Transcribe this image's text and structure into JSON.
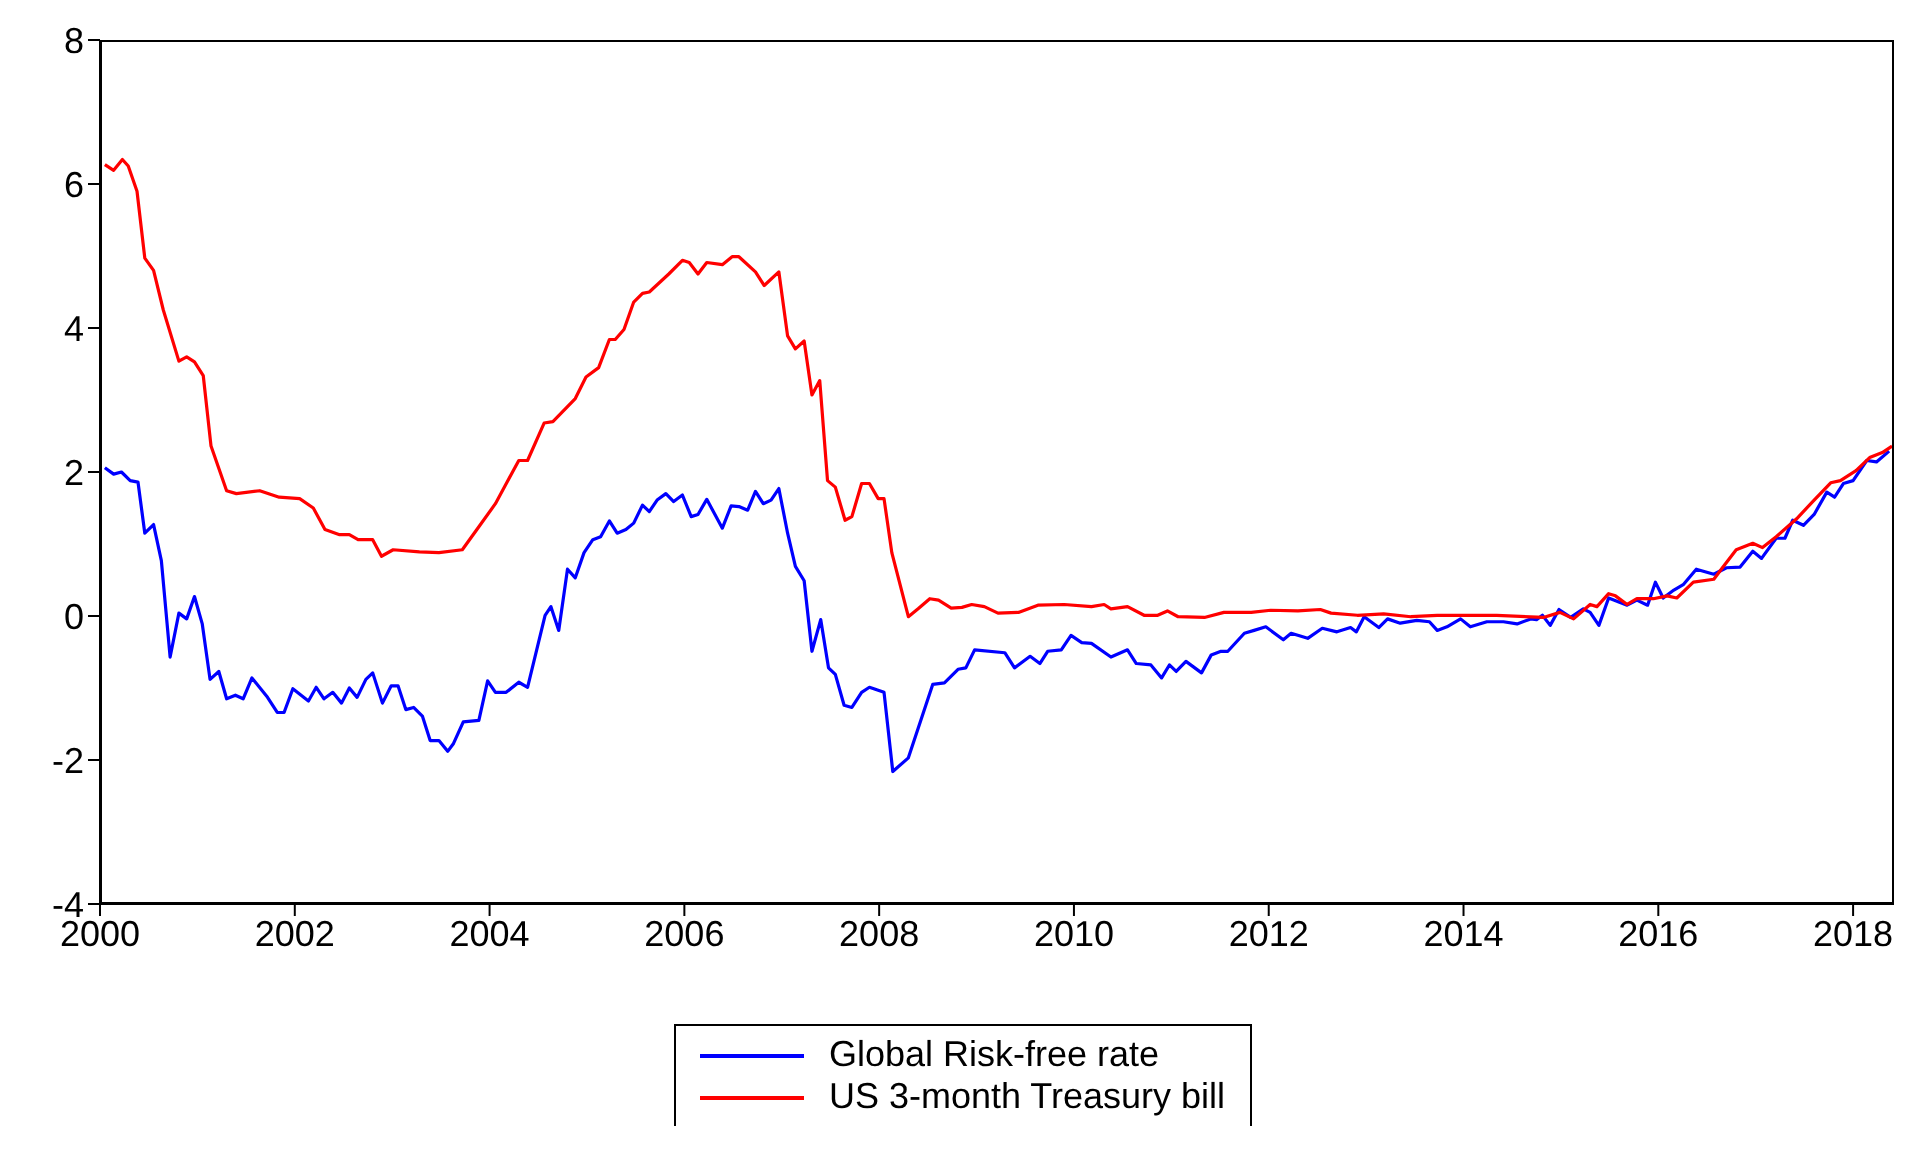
{
  "chart_data": {
    "type": "line",
    "xlim": [
      2000,
      2018.42
    ],
    "xticks": [
      2000,
      2002,
      2004,
      2006,
      2008,
      2010,
      2012,
      2014,
      2016,
      2018
    ],
    "ylim": [
      -4,
      8
    ],
    "yticks": [
      -4,
      -2,
      0,
      2,
      4,
      6,
      8
    ],
    "grid": false,
    "legend": "bottom",
    "marker": "none",
    "line_style": "solid",
    "series": [
      {
        "name": "Global Risk-free rate",
        "color": "#0000ff",
        "x": [
          2000.05,
          2000.14,
          2000.22,
          2000.31,
          2000.39,
          2000.46,
          2000.55,
          2000.63,
          2000.72,
          2000.81,
          2000.89,
          2000.97,
          2001.05,
          2001.13,
          2001.22,
          2001.3,
          2001.39,
          2001.47,
          2001.56,
          2001.72,
          2001.82,
          2001.89,
          2001.98,
          2002.14,
          2002.22,
          2002.3,
          2002.39,
          2002.48,
          2002.56,
          2002.64,
          2002.73,
          2002.8,
          2002.9,
          2002.99,
          2003.06,
          2003.14,
          2003.22,
          2003.31,
          2003.39,
          2003.48,
          2003.57,
          2003.63,
          2003.73,
          2003.89,
          2003.98,
          2004.06,
          2004.17,
          2004.3,
          2004.39,
          2004.57,
          2004.63,
          2004.71,
          2004.8,
          2004.88,
          2004.97,
          2005.06,
          2005.14,
          2005.23,
          2005.31,
          2005.4,
          2005.48,
          2005.57,
          2005.64,
          2005.72,
          2005.81,
          2005.89,
          2005.98,
          2006.07,
          2006.14,
          2006.23,
          2006.39,
          2006.48,
          2006.56,
          2006.65,
          2006.73,
          2006.81,
          2006.89,
          2006.97,
          2007.06,
          2007.14,
          2007.23,
          2007.31,
          2007.4,
          2007.48,
          2007.55,
          2007.64,
          2007.72,
          2007.82,
          2007.9,
          2008.05,
          2008.14,
          2008.3,
          2008.55,
          2008.67,
          2008.81,
          2008.89,
          2008.98,
          2009.29,
          2009.39,
          2009.55,
          2009.65,
          2009.73,
          2009.87,
          2009.97,
          2010.08,
          2010.18,
          2010.38,
          2010.55,
          2010.64,
          2010.79,
          2010.9,
          2010.98,
          2011.05,
          2011.15,
          2011.31,
          2011.41,
          2011.51,
          2011.58,
          2011.75,
          2011.85,
          2011.97,
          2012.15,
          2012.23,
          2012.4,
          2012.55,
          2012.7,
          2012.84,
          2012.9,
          2012.98,
          2013.13,
          2013.22,
          2013.35,
          2013.52,
          2013.65,
          2013.73,
          2013.83,
          2013.97,
          2014.07,
          2014.24,
          2014.41,
          2014.55,
          2014.69,
          2014.75,
          2014.81,
          2014.89,
          2014.98,
          2015.1,
          2015.23,
          2015.3,
          2015.39,
          2015.49,
          2015.68,
          2015.78,
          2015.89,
          2015.97,
          2016.05,
          2016.16,
          2016.26,
          2016.39,
          2016.57,
          2016.7,
          2016.84,
          2016.97,
          2017.06,
          2017.21,
          2017.3,
          2017.38,
          2017.49,
          2017.6,
          2017.73,
          2017.81,
          2017.9,
          2018.0,
          2018.14,
          2018.24,
          2018.37
        ],
        "values": [
          2.06,
          1.97,
          2.0,
          1.88,
          1.86,
          1.15,
          1.27,
          0.77,
          -0.57,
          0.04,
          -0.04,
          0.27,
          -0.11,
          -0.88,
          -0.77,
          -1.15,
          -1.1,
          -1.15,
          -0.86,
          -1.13,
          -1.34,
          -1.34,
          -1.01,
          -1.18,
          -0.99,
          -1.15,
          -1.06,
          -1.21,
          -1.0,
          -1.13,
          -0.88,
          -0.79,
          -1.21,
          -0.97,
          -0.97,
          -1.3,
          -1.27,
          -1.39,
          -1.73,
          -1.73,
          -1.88,
          -1.77,
          -1.47,
          -1.45,
          -0.9,
          -1.06,
          -1.06,
          -0.92,
          -0.99,
          0.01,
          0.13,
          -0.2,
          0.65,
          0.53,
          0.88,
          1.06,
          1.1,
          1.32,
          1.15,
          1.2,
          1.29,
          1.54,
          1.45,
          1.61,
          1.7,
          1.59,
          1.68,
          1.38,
          1.41,
          1.62,
          1.22,
          1.53,
          1.52,
          1.47,
          1.73,
          1.56,
          1.61,
          1.77,
          1.15,
          0.69,
          0.49,
          -0.49,
          -0.05,
          -0.72,
          -0.81,
          -1.24,
          -1.27,
          -1.06,
          -0.99,
          -1.06,
          -2.16,
          -1.97,
          -0.95,
          -0.93,
          -0.74,
          -0.72,
          -0.47,
          -0.51,
          -0.72,
          -0.56,
          -0.66,
          -0.49,
          -0.47,
          -0.27,
          -0.37,
          -0.38,
          -0.57,
          -0.47,
          -0.66,
          -0.68,
          -0.86,
          -0.68,
          -0.77,
          -0.63,
          -0.79,
          -0.54,
          -0.49,
          -0.49,
          -0.24,
          -0.2,
          -0.15,
          -0.33,
          -0.24,
          -0.31,
          -0.17,
          -0.22,
          -0.16,
          -0.22,
          -0.01,
          -0.16,
          -0.04,
          -0.1,
          -0.06,
          -0.08,
          -0.2,
          -0.15,
          -0.04,
          -0.15,
          -0.08,
          -0.08,
          -0.11,
          -0.04,
          -0.05,
          0.01,
          -0.13,
          0.09,
          -0.02,
          0.1,
          0.05,
          -0.13,
          0.25,
          0.15,
          0.22,
          0.15,
          0.47,
          0.25,
          0.36,
          0.44,
          0.65,
          0.58,
          0.67,
          0.68,
          0.9,
          0.8,
          1.08,
          1.08,
          1.33,
          1.26,
          1.41,
          1.72,
          1.65,
          1.84,
          1.88,
          2.16,
          2.14,
          2.29
        ]
      },
      {
        "name": "US 3-month Treasury bill",
        "color": "#ff0000",
        "x": [
          2000.05,
          2000.14,
          2000.23,
          2000.29,
          2000.38,
          2000.46,
          2000.55,
          2000.65,
          2000.81,
          2000.89,
          2000.97,
          2001.06,
          2001.14,
          2001.3,
          2001.4,
          2001.64,
          2001.84,
          2002.05,
          2002.19,
          2002.31,
          2002.46,
          2002.56,
          2002.65,
          2002.8,
          2002.89,
          2003.01,
          2003.28,
          2003.48,
          2003.72,
          2003.89,
          2004.06,
          2004.3,
          2004.39,
          2004.56,
          2004.65,
          2004.88,
          2004.99,
          2005.12,
          2005.23,
          2005.29,
          2005.38,
          2005.48,
          2005.57,
          2005.64,
          2005.84,
          2005.98,
          2006.05,
          2006.14,
          2006.23,
          2006.39,
          2006.49,
          2006.56,
          2006.73,
          2006.82,
          2006.97,
          2007.06,
          2007.14,
          2007.23,
          2007.31,
          2007.39,
          2007.47,
          2007.55,
          2007.65,
          2007.72,
          2007.82,
          2007.9,
          2007.99,
          2008.05,
          2008.13,
          2008.3,
          2008.4,
          2008.52,
          2008.61,
          2008.74,
          2008.85,
          2008.95,
          2009.08,
          2009.22,
          2009.43,
          2009.63,
          2009.9,
          2010.18,
          2010.31,
          2010.38,
          2010.55,
          2010.72,
          2010.86,
          2010.96,
          2011.07,
          2011.34,
          2011.54,
          2011.82,
          2012.02,
          2012.3,
          2012.53,
          2012.64,
          2012.91,
          2013.18,
          2013.46,
          2013.73,
          2014.34,
          2014.82,
          2014.99,
          2015.13,
          2015.3,
          2015.37,
          2015.49,
          2015.56,
          2015.68,
          2015.78,
          2015.95,
          2016.09,
          2016.19,
          2016.36,
          2016.57,
          2016.67,
          2016.8,
          2016.97,
          2017.07,
          2017.21,
          2017.42,
          2017.6,
          2017.77,
          2017.87,
          2018.03,
          2018.17,
          2018.3,
          2018.4
        ],
        "values": [
          6.27,
          6.19,
          6.34,
          6.25,
          5.9,
          4.97,
          4.8,
          4.25,
          3.54,
          3.6,
          3.53,
          3.34,
          2.36,
          1.74,
          1.7,
          1.74,
          1.65,
          1.63,
          1.5,
          1.2,
          1.13,
          1.13,
          1.06,
          1.06,
          0.83,
          0.92,
          0.89,
          0.88,
          0.92,
          1.24,
          1.56,
          2.16,
          2.16,
          2.68,
          2.7,
          3.02,
          3.32,
          3.45,
          3.84,
          3.84,
          3.98,
          4.36,
          4.48,
          4.5,
          4.75,
          4.94,
          4.91,
          4.75,
          4.91,
          4.88,
          4.99,
          4.99,
          4.78,
          4.59,
          4.78,
          3.89,
          3.71,
          3.82,
          3.07,
          3.27,
          1.88,
          1.79,
          1.33,
          1.38,
          1.84,
          1.84,
          1.63,
          1.63,
          0.88,
          -0.01,
          0.1,
          0.24,
          0.22,
          0.11,
          0.12,
          0.16,
          0.13,
          0.04,
          0.05,
          0.15,
          0.16,
          0.13,
          0.16,
          0.1,
          0.13,
          0.01,
          0.01,
          0.07,
          -0.01,
          -0.02,
          0.05,
          0.05,
          0.08,
          0.07,
          0.09,
          0.04,
          0.01,
          0.03,
          -0.01,
          0.01,
          0.01,
          -0.02,
          0.05,
          -0.04,
          0.16,
          0.13,
          0.31,
          0.28,
          0.16,
          0.24,
          0.24,
          0.28,
          0.25,
          0.47,
          0.51,
          0.69,
          0.92,
          1.01,
          0.95,
          1.1,
          1.35,
          1.61,
          1.85,
          1.88,
          2.02,
          2.2,
          2.27,
          2.36
        ]
      }
    ]
  }
}
